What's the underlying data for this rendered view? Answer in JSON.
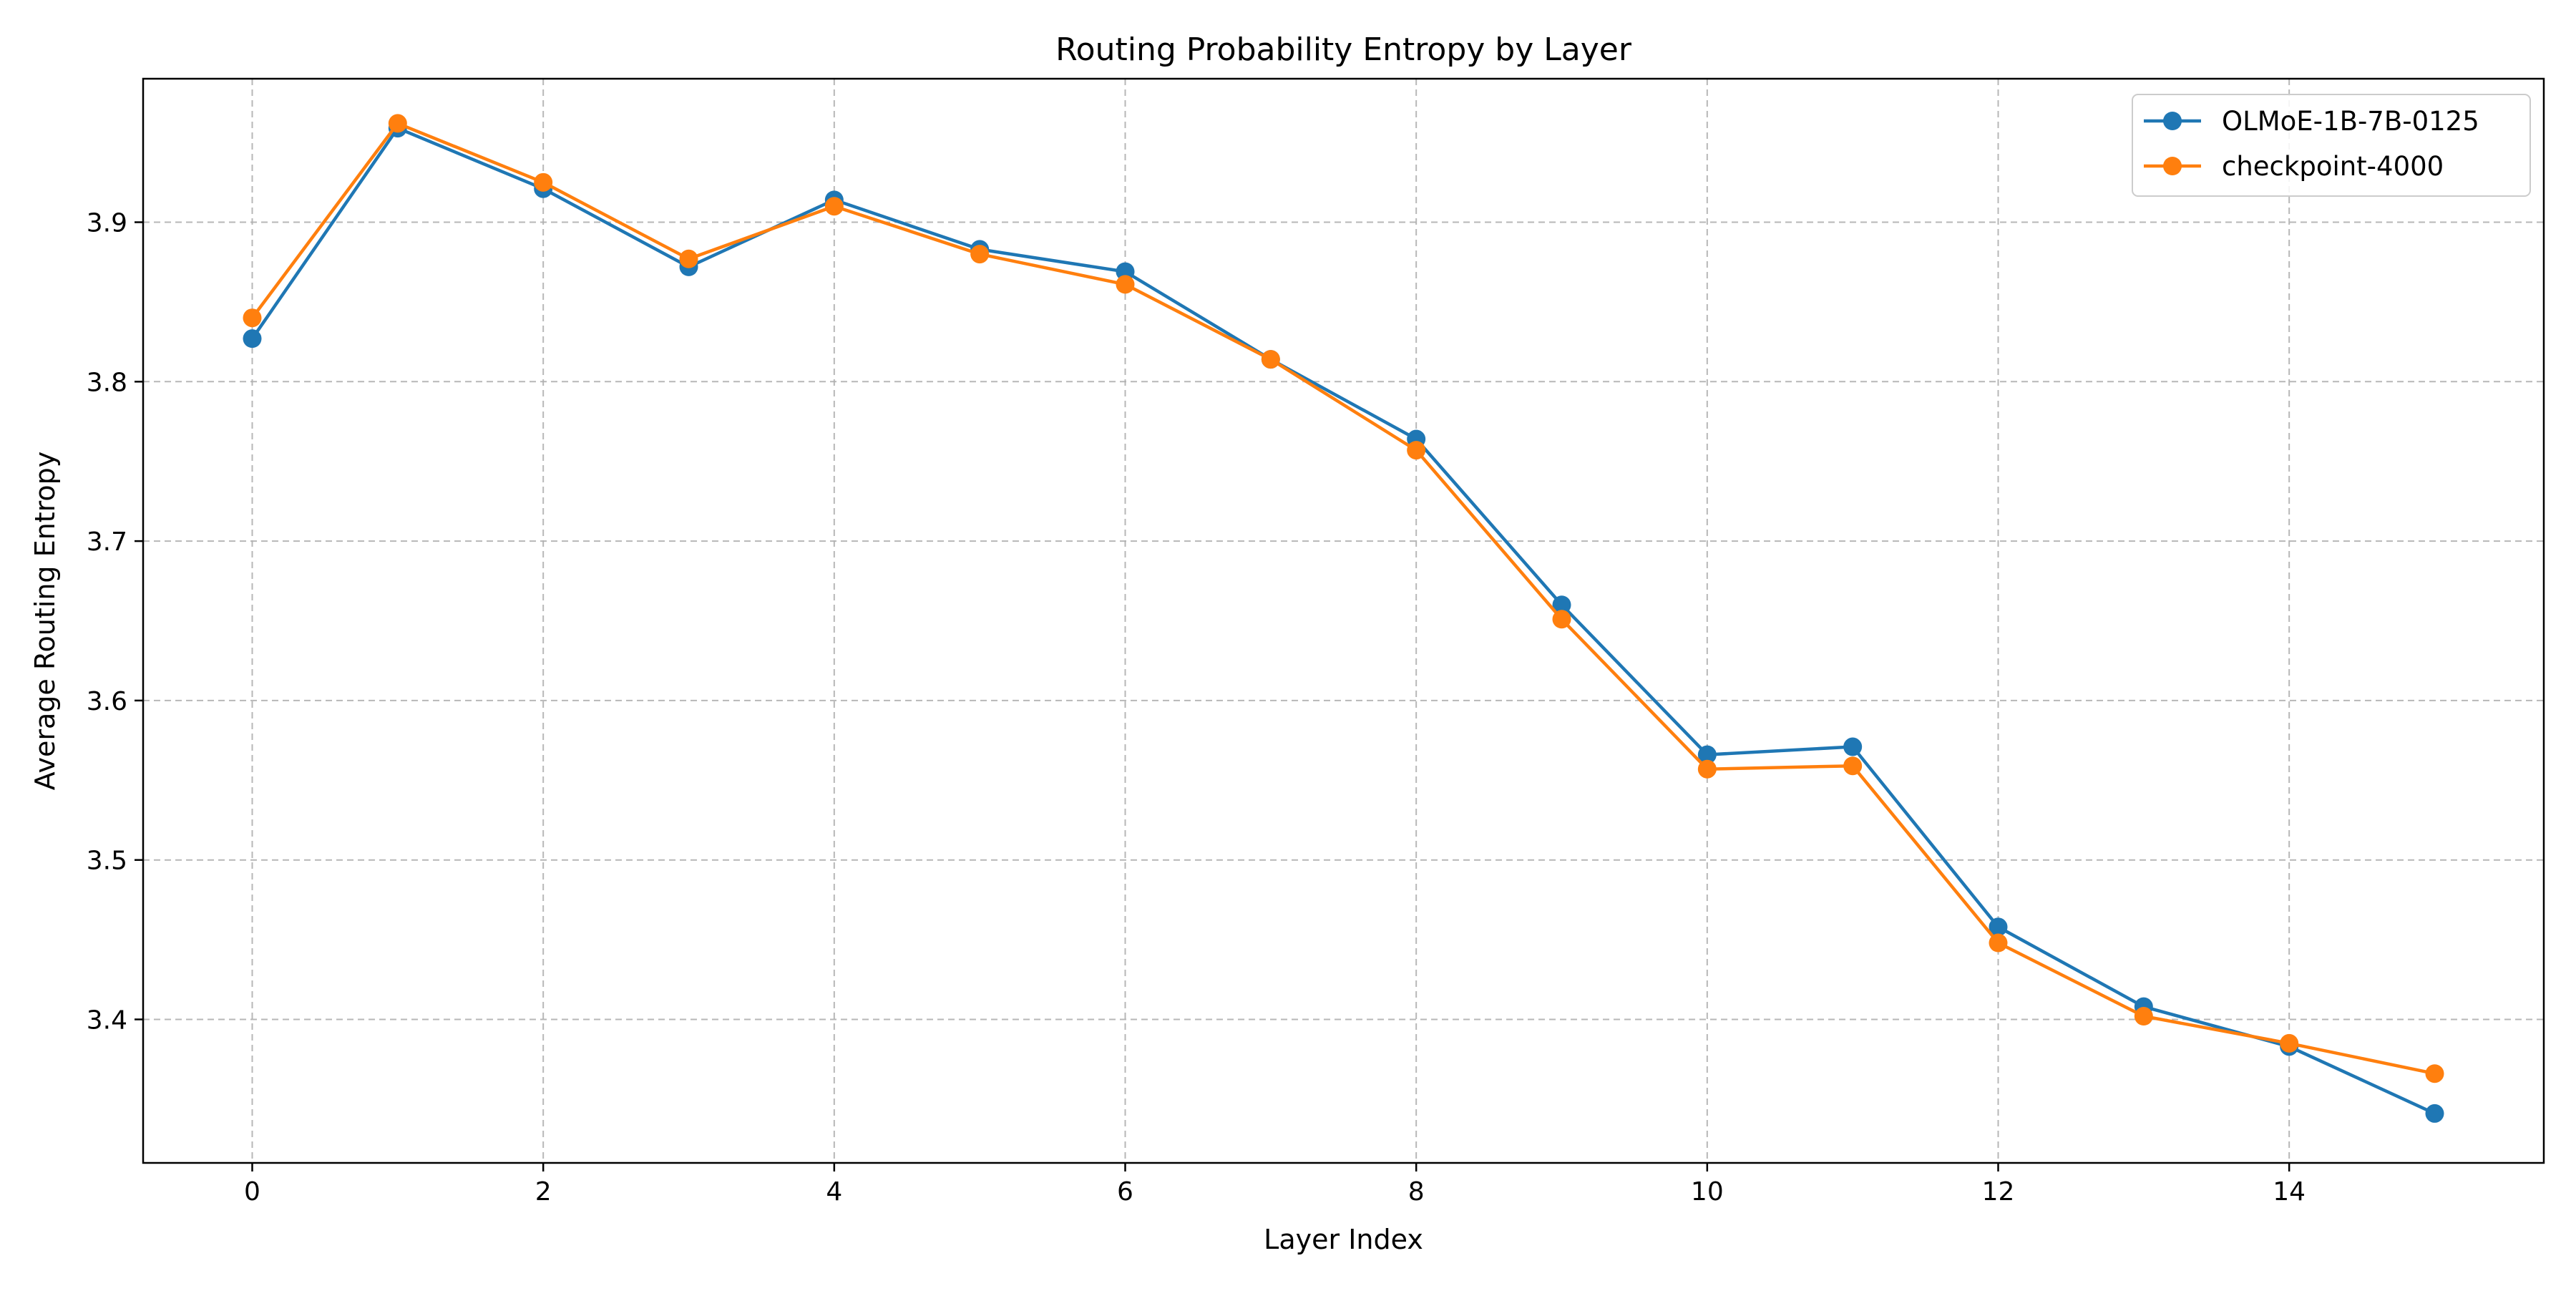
{
  "chart_data": {
    "type": "line",
    "title": "Routing Probability Entropy by Layer",
    "xlabel": "Layer Index",
    "ylabel": "Average Routing Entropy",
    "x": [
      0,
      1,
      2,
      3,
      4,
      5,
      6,
      7,
      8,
      9,
      10,
      11,
      12,
      13,
      14,
      15
    ],
    "xlim": [
      -0.75,
      15.75
    ],
    "ylim": [
      3.31,
      3.99
    ],
    "xticks": [
      0,
      2,
      4,
      6,
      8,
      10,
      12,
      14
    ],
    "yticks": [
      3.4,
      3.5,
      3.6,
      3.7,
      3.8,
      3.9
    ],
    "grid": true,
    "legend_position": "top-right",
    "series": [
      {
        "name": "OLMoE-1B-7B-0125",
        "color": "#1f77b4",
        "values": [
          3.827,
          3.959,
          3.921,
          3.872,
          3.914,
          3.883,
          3.869,
          3.814,
          3.764,
          3.66,
          3.566,
          3.571,
          3.458,
          3.408,
          3.383,
          3.341
        ]
      },
      {
        "name": "checkpoint-4000",
        "color": "#ff7f0e",
        "values": [
          3.84,
          3.962,
          3.925,
          3.877,
          3.91,
          3.88,
          3.861,
          3.814,
          3.757,
          3.651,
          3.557,
          3.559,
          3.448,
          3.402,
          3.385,
          3.366
        ]
      }
    ]
  }
}
